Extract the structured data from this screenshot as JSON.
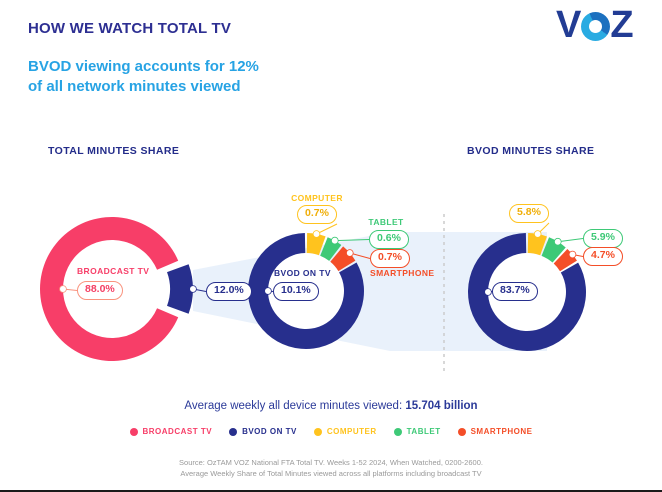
{
  "header": {
    "title": "HOW WE WATCH TOTAL TV",
    "subtitle_line1": "BVOD viewing accounts for 12%",
    "subtitle_line2": "of all network minutes viewed",
    "logo": {
      "v": "V",
      "z": "Z",
      "o_icon": "voz-ring-icon"
    }
  },
  "colors": {
    "broadcast_pink": "#F73E68",
    "bvod_navy": "#272F8D",
    "computer_yellow": "#FFC31E",
    "tablet_green": "#3EC977",
    "smartphone_orange": "#F44E28",
    "subtitle_cyan": "#27A3E4",
    "title_navy": "#2D2F92",
    "heading_navy": "#232C8A",
    "text_navy": "#2B3A99",
    "beam_light_blue": "#E9F1FB",
    "dashed_divider_gray": "#CCCCCC",
    "source_gray": "#9A9A9A",
    "salmon_callout": "#F9937E",
    "logo_navy": "#223C94",
    "logo_cyan": "#29ABE2",
    "logo_midblue": "#1C70BF"
  },
  "chart_data": [
    {
      "type": "pie",
      "title": "TOTAL MINUTES SHARE",
      "legend_position": "bottom",
      "segments": [
        {
          "label": "BVOD",
          "value": 12.0,
          "display": "12.0%",
          "color": "#272F8D",
          "exploded": true
        },
        {
          "label": "BROADCAST TV",
          "value": 88.0,
          "display": "88.0%",
          "color": "#F73E68",
          "callout_color": "#F9937E"
        }
      ]
    },
    {
      "type": "pie",
      "title": "",
      "segments": [
        {
          "label": "COMPUTER",
          "value": 0.7,
          "display": "0.7%",
          "color": "#FFC31E"
        },
        {
          "label": "TABLET",
          "value": 0.6,
          "display": "0.6%",
          "color": "#3EC977"
        },
        {
          "label": "SMARTPHONE",
          "value": 0.7,
          "display": "0.7%",
          "color": "#F44E28"
        },
        {
          "label": "BVOD ON TV",
          "value": 10.1,
          "display": "10.1%",
          "color": "#272F8D"
        }
      ]
    },
    {
      "type": "pie",
      "title": "BVOD MINUTES SHARE",
      "segments": [
        {
          "label": "COMPUTER",
          "value": 5.8,
          "display": "5.8%",
          "color": "#FFC31E"
        },
        {
          "label": "TABLET",
          "value": 5.9,
          "display": "5.9%",
          "color": "#3EC977"
        },
        {
          "label": "SMARTPHONE",
          "value": 4.7,
          "display": "4.7%",
          "color": "#F44E28"
        },
        {
          "label": "BVOD ON TV",
          "value": 83.7,
          "display": "83.7%",
          "color": "#272F8D"
        }
      ]
    }
  ],
  "footer": {
    "avg_prefix": "Average weekly all device minutes viewed: ",
    "avg_value": "15.704 billion",
    "legend": [
      {
        "label": "BROADCAST TV",
        "color": "#F73E68"
      },
      {
        "label": "BVOD ON TV",
        "color": "#272F8D"
      },
      {
        "label": "COMPUTER",
        "color": "#FFC31E"
      },
      {
        "label": "TABLET",
        "color": "#3EC977"
      },
      {
        "label": "SMARTPHONE",
        "color": "#F44E28"
      }
    ],
    "source_line1": "Source: OzTAM VOZ National FTA Total TV. Weeks 1-52 2024, When Watched, 0200-2600.",
    "source_line2": "Average Weekly Share of Total Minutes viewed across all platforms including broadcast TV"
  }
}
